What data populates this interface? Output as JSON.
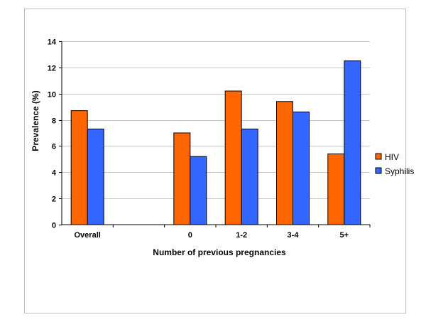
{
  "chart_data": {
    "type": "bar",
    "categories": [
      "Overall",
      "",
      "0",
      "1-2",
      "3-4",
      "5+"
    ],
    "series": [
      {
        "name": "HIV",
        "color": "#ff6600",
        "values": [
          8.7,
          null,
          7.0,
          10.2,
          9.4,
          5.4
        ]
      },
      {
        "name": "Syphilis",
        "color": "#3366ff",
        "values": [
          7.3,
          null,
          5.2,
          7.3,
          8.6,
          12.5
        ]
      }
    ],
    "xlabel": "Number of previous pregnancies",
    "ylabel": "Prevalence (%)",
    "ylim": [
      0,
      14
    ],
    "yticks": [
      0,
      2,
      4,
      6,
      8,
      10,
      12,
      14
    ],
    "grid": true,
    "legend_position": "right"
  }
}
